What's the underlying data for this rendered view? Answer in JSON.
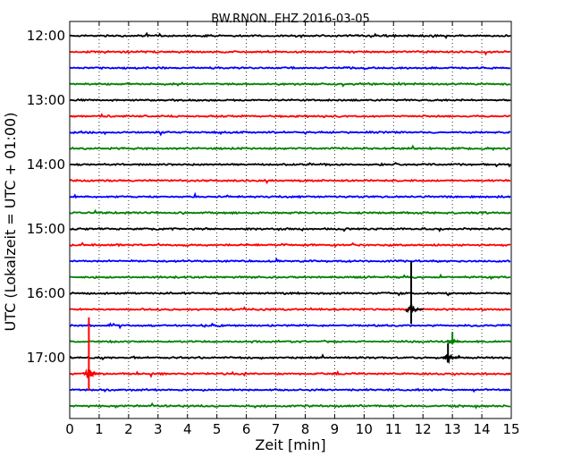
{
  "chart_data": {
    "type": "line",
    "title": "BW.RNON..EHZ 2016-03-05",
    "xlabel": "Zeit  [min]",
    "ylabel": "UTC (Lokalzeit = UTC + 01:00)",
    "xlim": [
      0,
      15
    ],
    "x_ticks": [
      "0",
      "1",
      "2",
      "3",
      "4",
      "5",
      "6",
      "7",
      "8",
      "9",
      "10",
      "11",
      "12",
      "13",
      "14",
      "15"
    ],
    "y_tick_labels": [
      "12:00",
      "13:00",
      "14:00",
      "15:00",
      "16:00",
      "17:00"
    ],
    "grid": "vertical-dotted",
    "rows_per_hour": 4,
    "row_start": "12:00",
    "row_count": 24,
    "colors": [
      "#000000",
      "#ff0000",
      "#0000ff",
      "#008000"
    ],
    "events": [
      {
        "row": 17,
        "x": 11.6,
        "amplitude": 3.0,
        "color": "#000000"
      },
      {
        "row": 19,
        "x": 13.0,
        "amplitude": 0.6,
        "color": "#008000"
      },
      {
        "row": 20,
        "x": 12.85,
        "amplitude": 0.9,
        "color": "#000000"
      },
      {
        "row": 21,
        "x": 0.65,
        "amplitude": 3.5,
        "color": "#ff0000"
      }
    ]
  }
}
